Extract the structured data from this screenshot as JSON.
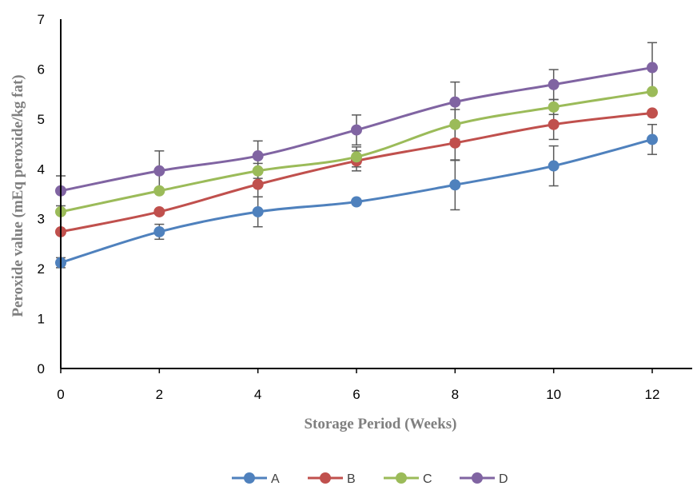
{
  "chart_data": {
    "type": "line",
    "xlabel": "Storage Period (Weeks)",
    "ylabel": "Peroxide value (mEq peroxide/kg fat)",
    "x": [
      0,
      2,
      4,
      6,
      8,
      10,
      12
    ],
    "xlim": [
      0,
      12
    ],
    "ylim": [
      0,
      7
    ],
    "yticks": [
      0,
      1,
      2,
      3,
      4,
      5,
      6,
      7
    ],
    "grid": false,
    "legend_position": "bottom",
    "series": [
      {
        "name": "A",
        "color": "#4f81bd",
        "values": [
          2.12,
          2.74,
          3.14,
          3.34,
          3.68,
          4.06,
          4.59
        ],
        "errors": [
          0.1,
          0.15,
          0.3,
          0.05,
          0.5,
          0.4,
          0.3
        ]
      },
      {
        "name": "B",
        "color": "#c0504d",
        "values": [
          2.74,
          3.14,
          3.69,
          4.16,
          4.52,
          4.89,
          5.12
        ],
        "errors": [
          0.0,
          0.05,
          0.25,
          0.2,
          0.35,
          0.3,
          0.0
        ]
      },
      {
        "name": "C",
        "color": "#9bbb59",
        "values": [
          3.14,
          3.56,
          3.96,
          4.24,
          4.89,
          5.24,
          5.55
        ],
        "errors": [
          0.0,
          0.0,
          0.15,
          0.2,
          0.3,
          0.15,
          0.0
        ]
      },
      {
        "name": "D",
        "color": "#8064a2",
        "values": [
          3.56,
          3.96,
          4.26,
          4.78,
          5.34,
          5.69,
          6.03
        ],
        "errors": [
          0.3,
          0.4,
          0.3,
          0.3,
          0.4,
          0.3,
          0.5
        ]
      }
    ]
  }
}
